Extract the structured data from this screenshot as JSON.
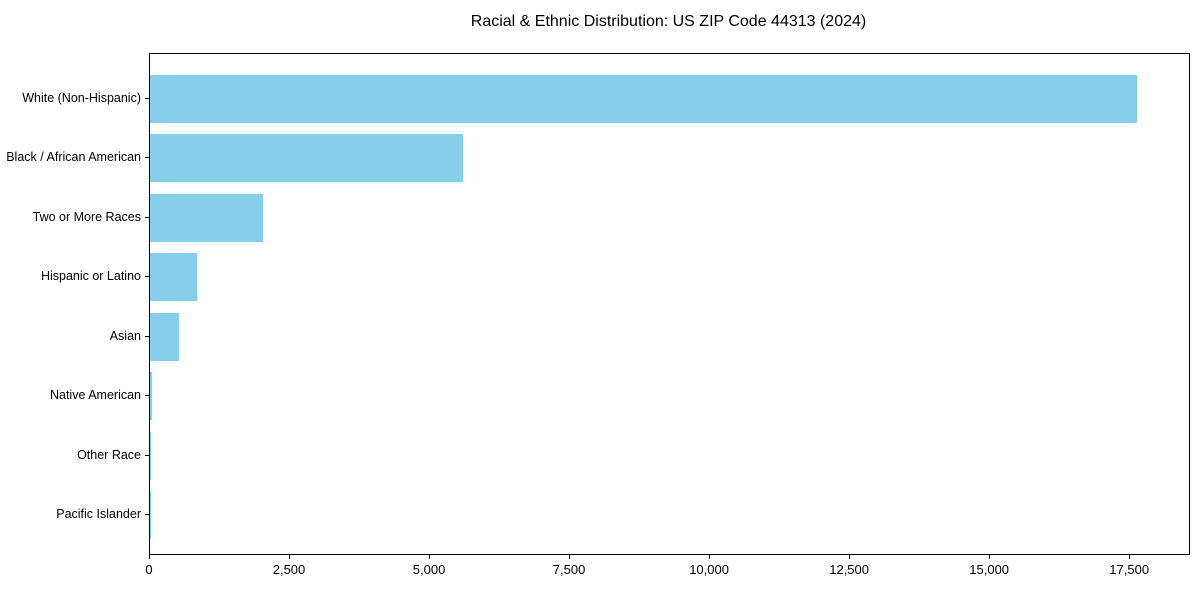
{
  "figure": {
    "background": "#ffffff",
    "text_color": "#000000",
    "spine_color": "#000000"
  },
  "chart_data": {
    "type": "bar",
    "orientation": "horizontal",
    "title": "Racial & Ethnic Distribution: US ZIP Code 44313 (2024)",
    "categories": [
      "White (Non-Hispanic)",
      "Black / African American",
      "Two or More Races",
      "Hispanic or Latino",
      "Asian",
      "Native American",
      "Other Race",
      "Pacific Islander"
    ],
    "values": [
      17620,
      5590,
      2010,
      835,
      515,
      30,
      15,
      5
    ],
    "bar_color": "#87CEEB",
    "xlabel": "",
    "ylabel": "",
    "xlim": [
      0,
      18550
    ],
    "xticks": [
      0,
      2500,
      5000,
      7500,
      10000,
      12500,
      15000,
      17500
    ],
    "xtick_labels": [
      "0",
      "2,500",
      "5,000",
      "7,500",
      "10,000",
      "12,500",
      "15,000",
      "17,500"
    ],
    "grid": false,
    "legend": null
  }
}
